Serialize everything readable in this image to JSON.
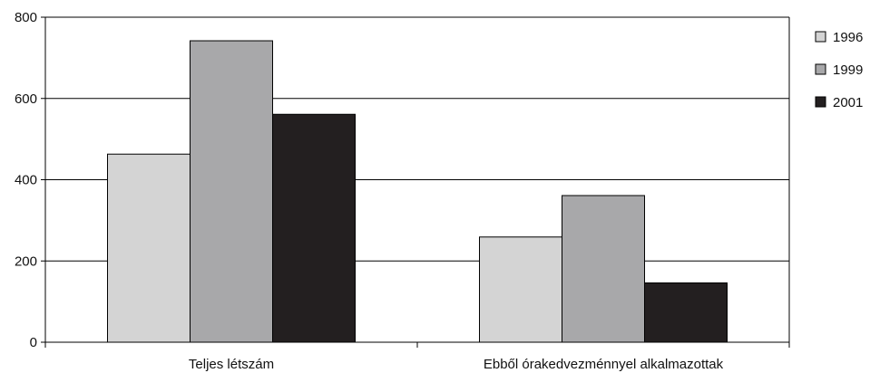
{
  "chart_data": {
    "type": "bar",
    "title": "",
    "xlabel": "",
    "ylabel": "",
    "categories": [
      "Teljes létszám",
      "Ebből órakedvezménnyel alkalmazottak"
    ],
    "series": [
      {
        "name": "1996",
        "values": [
          463,
          259
        ],
        "color": "#d4d4d4"
      },
      {
        "name": "1999",
        "values": [
          742,
          361
        ],
        "color": "#a8a8aa"
      },
      {
        "name": "2001",
        "values": [
          561,
          146
        ],
        "color": "#231f20"
      }
    ],
    "ylim": [
      0,
      800
    ],
    "yticks": [
      0,
      200,
      400,
      600,
      800
    ],
    "grid": true,
    "legend_position": "right"
  }
}
